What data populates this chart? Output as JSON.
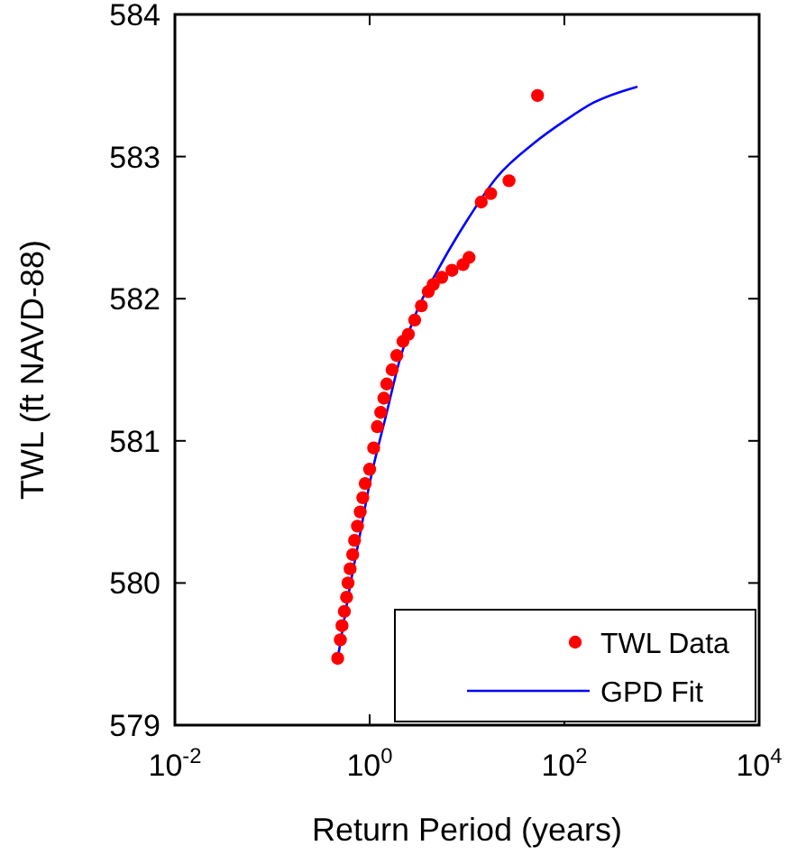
{
  "chart_data": {
    "type": "scatter",
    "xlabel": "Return Period (years)",
    "ylabel": "TWL (ft NAVD-88)",
    "log": "x",
    "xlim": [
      0.01,
      10000
    ],
    "xticks": [
      {
        "value": 0.01,
        "label": "10$^{-2}$"
      },
      {
        "value": 1,
        "label": "10$^{0}$"
      },
      {
        "value": 100,
        "label": "10$^{2}$"
      },
      {
        "value": 10000,
        "label": "10$^{4}$"
      }
    ],
    "ylim": [
      579,
      584
    ],
    "yticks": [
      579,
      580,
      581,
      582,
      583,
      584
    ],
    "grid": false,
    "legend": "bottom right",
    "series": [
      {
        "name": "TWL Data",
        "color": "#ff0000",
        "marker": "circle",
        "x": [
          0.47,
          0.5,
          0.52,
          0.55,
          0.58,
          0.6,
          0.63,
          0.67,
          0.7,
          0.75,
          0.8,
          0.85,
          0.9,
          1.0,
          1.1,
          1.2,
          1.3,
          1.4,
          1.5,
          1.7,
          1.9,
          2.2,
          2.5,
          2.9,
          3.4,
          4,
          4.5,
          5.5,
          7,
          9.1,
          10.5,
          14,
          17.5,
          27,
          53
        ],
        "values": [
          579.47,
          579.6,
          579.7,
          579.8,
          579.9,
          580.0,
          580.1,
          580.2,
          580.3,
          580.4,
          580.5,
          580.6,
          580.7,
          580.8,
          580.95,
          581.1,
          581.2,
          581.3,
          581.4,
          581.5,
          581.6,
          581.7,
          581.75,
          581.85,
          581.95,
          582.05,
          582.1,
          582.15,
          582.2,
          582.24,
          582.29,
          582.68,
          582.74,
          582.83,
          583.43
        ]
      },
      {
        "name": "GPD Fit",
        "type": "line",
        "color": "#0000ff",
        "line_style": "solid",
        "x": [
          0.47,
          0.6,
          0.8,
          1,
          1.5,
          2,
          3,
          5,
          10,
          20,
          50,
          100,
          200,
          550
        ],
        "values": [
          579.47,
          579.9,
          580.35,
          580.7,
          581.2,
          581.55,
          581.9,
          582.2,
          582.55,
          582.85,
          583.1,
          583.25,
          583.38,
          583.49
        ]
      }
    ]
  }
}
